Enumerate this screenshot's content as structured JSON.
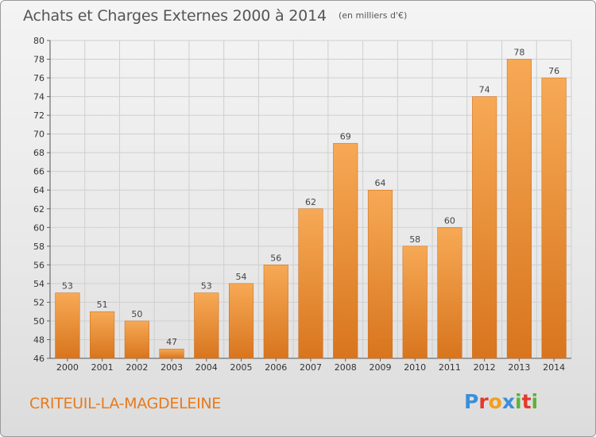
{
  "header": {
    "title": "Achats et Charges Externes 2000 à 2014",
    "subtitle": "(en milliers d'€)"
  },
  "footer": {
    "commune": "CRITEUIL-LA-MAGDELEINE",
    "brand": "Proxiti",
    "brand_colors": [
      "#3a8fd8",
      "#e23a2a",
      "#f0a020",
      "#3a8fd8",
      "#5bb33a",
      "#e23a2a",
      "#5bb33a"
    ]
  },
  "colors": {
    "bar_light": "#f7a955",
    "bar_dark": "#d8751e",
    "commune_text": "#e77a1c",
    "grid": "#cfcfcf"
  },
  "chart_data": {
    "type": "bar",
    "title": "Achats et Charges Externes 2000 à 2014",
    "subtitle": "(en milliers d'€)",
    "xlabel": "",
    "ylabel": "",
    "categories": [
      "2000",
      "2001",
      "2002",
      "2003",
      "2004",
      "2005",
      "2006",
      "2007",
      "2008",
      "2009",
      "2010",
      "2011",
      "2012",
      "2013",
      "2014"
    ],
    "values": [
      53,
      51,
      50,
      47,
      53,
      54,
      56,
      62,
      69,
      64,
      58,
      60,
      74,
      78,
      76
    ],
    "ylim": [
      46,
      80
    ],
    "yticks": [
      46,
      48,
      50,
      52,
      54,
      56,
      58,
      60,
      62,
      64,
      66,
      68,
      70,
      72,
      74,
      76,
      78,
      80
    ],
    "grid": true,
    "legend": "none"
  }
}
